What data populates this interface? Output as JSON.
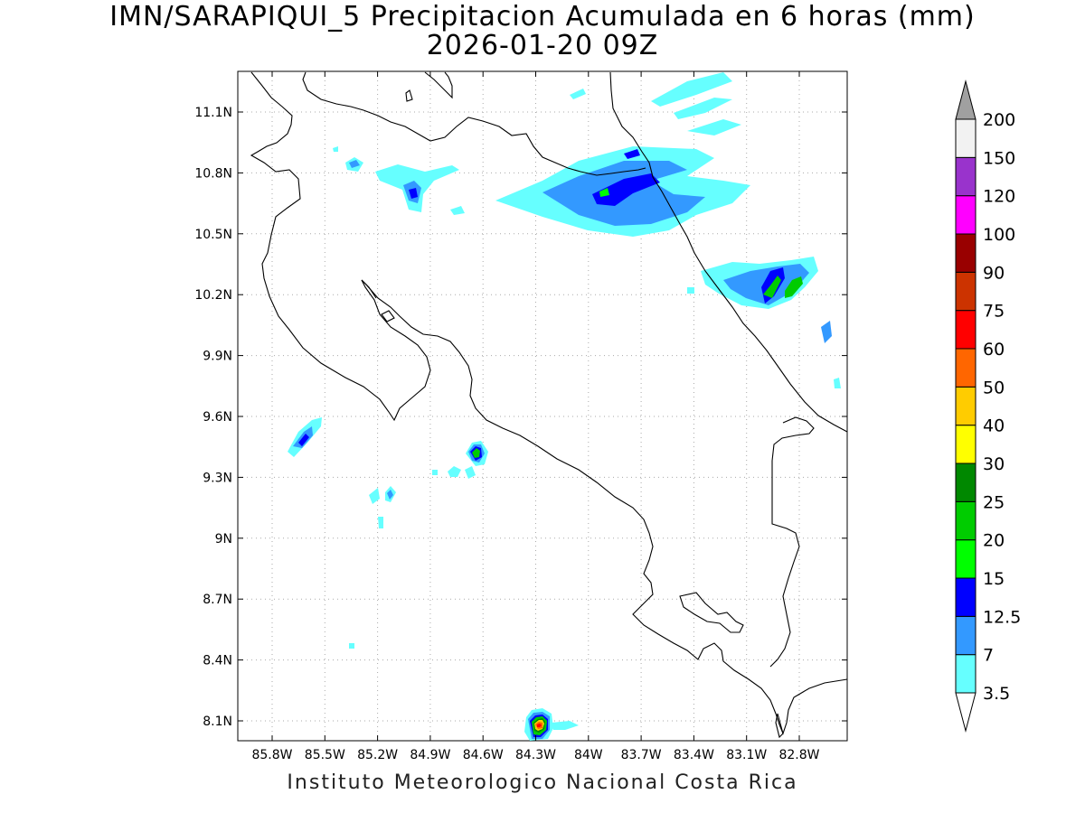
{
  "title_line1": "IMN/SARAPIQUI_5 Precipitacion Acumulada en 6 horas (mm)",
  "title_line2": "2026-01-20 09Z",
  "footer": "Instituto Meteorologico Nacional Costa Rica",
  "lon_ticks": [
    "85.8W",
    "85.5W",
    "85.2W",
    "84.9W",
    "84.6W",
    "84.3W",
    "84W",
    "83.7W",
    "83.4W",
    "83.1W",
    "82.8W"
  ],
  "lat_ticks": [
    "11.1N",
    "10.8N",
    "10.5N",
    "10.2N",
    "9.9N",
    "9.6N",
    "9.3N",
    "9N",
    "8.7N",
    "8.4N",
    "8.1N"
  ],
  "colorbar": {
    "labels": [
      "3.5",
      "7",
      "12.5",
      "15",
      "20",
      "25",
      "30",
      "40",
      "50",
      "60",
      "75",
      "90",
      "100",
      "120",
      "150",
      "200"
    ],
    "colors": [
      "#ffffff",
      "#66ffff",
      "#3399ff",
      "#0000ff",
      "#00ff00",
      "#00cc00",
      "#008800",
      "#ffff00",
      "#ffcc00",
      "#ff6600",
      "#ff0000",
      "#cc3300",
      "#990000",
      "#ff00ff",
      "#9933cc",
      "#f2f2f2",
      "#a0a0a0"
    ]
  }
}
